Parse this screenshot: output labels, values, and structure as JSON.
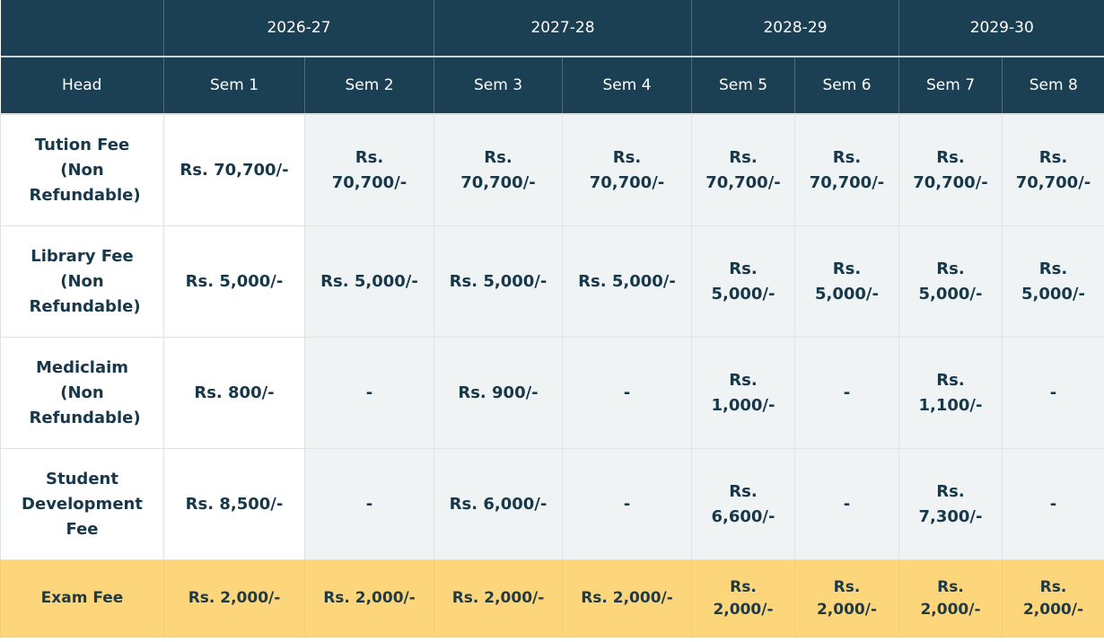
{
  "years": [
    "2026-27",
    "2027-28",
    "2028-29",
    "2029-30"
  ],
  "columns": {
    "head": "Head",
    "sems": [
      "Sem 1",
      "Sem 2",
      "Sem 3",
      "Sem 4",
      "Sem 5",
      "Sem 6",
      "Sem 7",
      "Sem 8"
    ]
  },
  "rows": [
    {
      "head": "Tution Fee (Non Refundable)",
      "values": [
        "Rs. 70,700/-",
        "Rs. 70,700/-",
        "Rs. 70,700/-",
        "Rs. 70,700/-",
        "Rs. 70,700/-",
        "Rs. 70,700/-",
        "Rs. 70,700/-",
        "Rs. 70,700/-"
      ]
    },
    {
      "head": "Library Fee (Non Refundable)",
      "values": [
        "Rs. 5,000/-",
        "Rs. 5,000/-",
        "Rs. 5,000/-",
        "Rs. 5,000/-",
        "Rs. 5,000/-",
        "Rs. 5,000/-",
        "Rs. 5,000/-",
        "Rs. 5,000/-"
      ]
    },
    {
      "head": "Mediclaim (Non Refundable)",
      "values": [
        "Rs. 800/-",
        "-",
        "Rs. 900/-",
        "-",
        "Rs. 1,000/-",
        "-",
        "Rs. 1,100/-",
        "-"
      ]
    },
    {
      "head": "Student Development Fee",
      "values": [
        "Rs. 8,500/-",
        "-",
        "Rs. 6,000/-",
        "-",
        "Rs. 6,600/-",
        "-",
        "Rs. 7,300/-",
        "-"
      ]
    },
    {
      "head": "Exam Fee",
      "values": [
        "Rs. 2,000/-",
        "Rs. 2,000/-",
        "Rs. 2,000/-",
        "Rs. 2,000/-",
        "Rs. 2,000/-",
        "Rs. 2,000/-",
        "Rs. 2,000/-",
        "Rs. 2,000/-"
      ]
    }
  ],
  "colors": {
    "header_bg": "#1b3f53",
    "exam_row_bg": "#fdd57a",
    "body_text": "#17384a"
  }
}
